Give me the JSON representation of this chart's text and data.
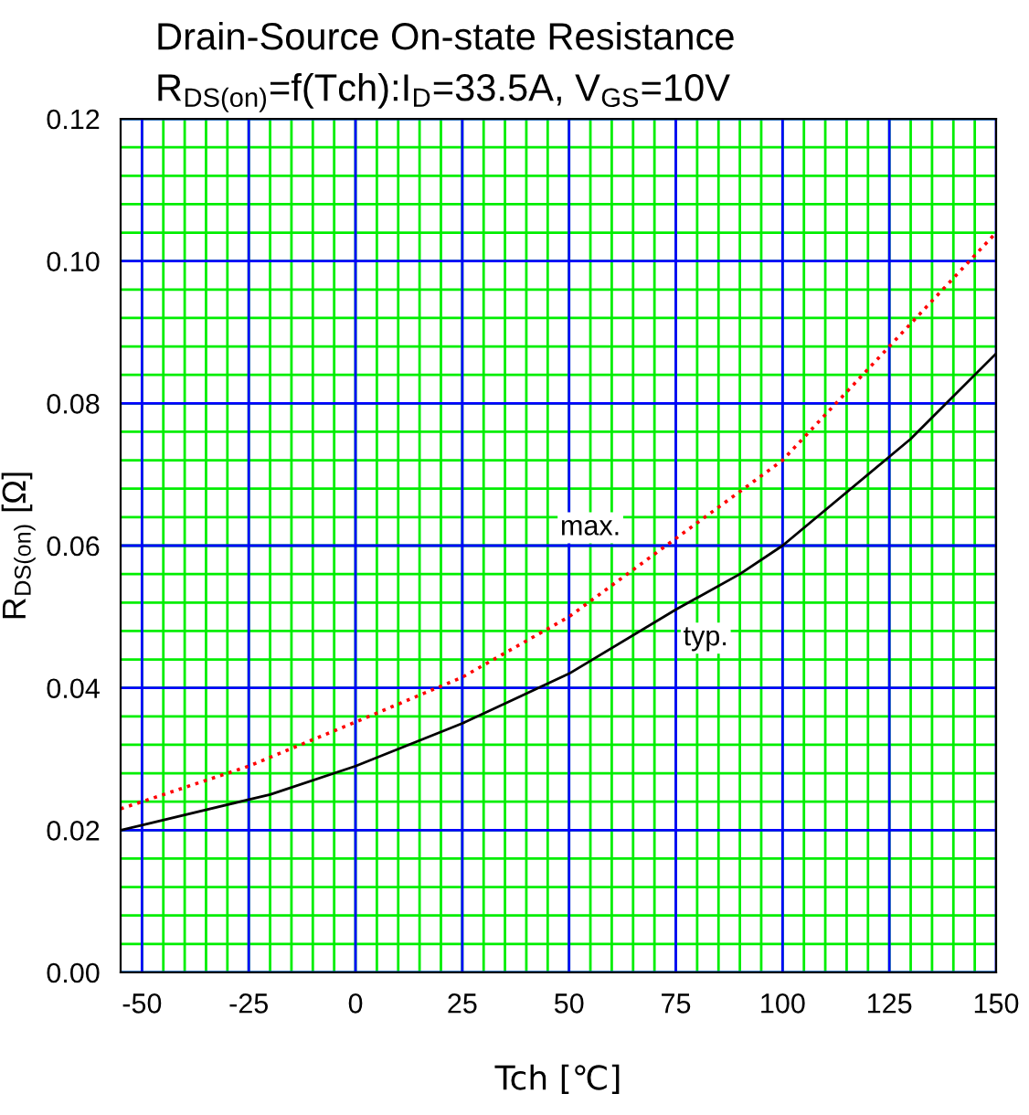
{
  "chart_data": {
    "type": "line",
    "title": "Drain-Source On-state Resistance",
    "subtitle": "R$_{DS(on)}$=f(Tch):I$_{D}$=33.5A, V$_{GS}$=10V",
    "xlabel": "Tch [℃]",
    "ylabel": "R$_{DS(on)}$ [Ω]",
    "series": [
      {
        "color": "#000000",
        "line_style": "solid",
        "x": [
          -55,
          -50,
          -25,
          -20,
          0,
          25,
          50,
          75,
          90,
          100,
          125,
          130,
          150
        ],
        "values": [
          0.02,
          0.0207,
          0.0243,
          0.025,
          0.029,
          0.035,
          0.042,
          0.051,
          0.056,
          0.06,
          0.0725,
          0.075,
          0.087
        ]
      },
      {
        "color": "#ff0000",
        "line_style": "dotted",
        "x": [
          -55,
          -25,
          0,
          25,
          50,
          75,
          100,
          125,
          150
        ],
        "values": [
          0.023,
          0.029,
          0.0352,
          0.0415,
          0.05,
          0.061,
          0.072,
          0.088,
          0.104
        ]
      }
    ],
    "annotations": [
      {
        "text": "max.",
        "x": 55,
        "y": 0.0625
      },
      {
        "text": "typ.",
        "x": 82,
        "y": 0.047
      }
    ],
    "xlim": [
      -55,
      150
    ],
    "xticks": [
      -50,
      -25,
      0,
      25,
      50,
      75,
      100,
      125,
      150
    ],
    "ylim": [
      0,
      0.12
    ],
    "yticks": [
      {
        "value": 0,
        "label": "0.00"
      },
      {
        "value": 0.02,
        "label": "0.02"
      },
      {
        "value": 0.04,
        "label": "0.04"
      },
      {
        "value": 0.06,
        "label": "0.06"
      },
      {
        "value": 0.08,
        "label": "0.08"
      },
      {
        "value": 0.1,
        "label": "0.10"
      },
      {
        "value": 0.12,
        "label": "0.12"
      }
    ],
    "grid": true,
    "legend": false,
    "marker": "none"
  }
}
